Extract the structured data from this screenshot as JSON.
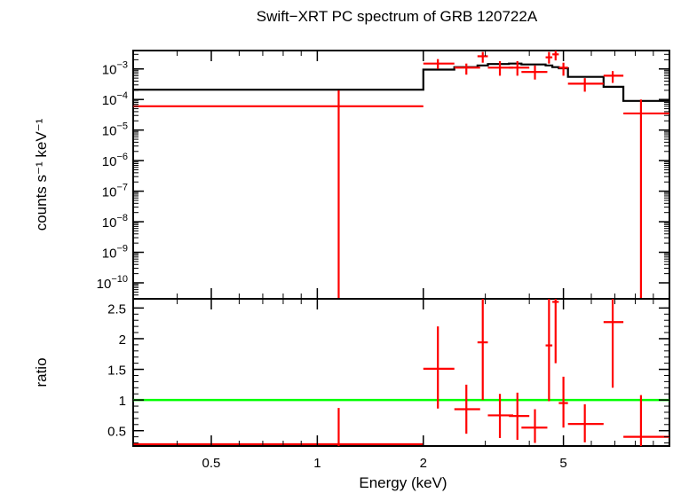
{
  "chart_data": [
    {
      "type": "scatter",
      "title": "Swift−XRT PC spectrum of GRB 120722A",
      "ylabel": "counts s⁻¹ keV⁻¹",
      "xlabel": "",
      "x_scale": "log",
      "y_scale": "log",
      "xlim": [
        0.3,
        10
      ],
      "ylim": [
        3e-11,
        0.004
      ],
      "y_ticks": [
        {
          "value": 0.001,
          "label": "10⁻³"
        },
        {
          "value": 0.0001,
          "label": "10⁻⁴"
        },
        {
          "value": 1e-05,
          "label": "10⁻⁵"
        },
        {
          "value": 1e-06,
          "label": "10⁻⁶"
        },
        {
          "value": 1e-07,
          "label": "10⁻⁷"
        },
        {
          "value": 1e-08,
          "label": "10⁻⁸"
        },
        {
          "value": 1e-09,
          "label": "10⁻⁹"
        },
        {
          "value": 1e-10,
          "label": "10⁻¹⁰"
        }
      ],
      "data_color": "#ff0000",
      "model_color": "#000000",
      "data_points": [
        {
          "x": 1.15,
          "xlo": 0.3,
          "xhi": 2.0,
          "y": 6e-05,
          "ylo": 3e-11,
          "yhi": 0.0002
        },
        {
          "x": 2.2,
          "xlo": 2.0,
          "xhi": 2.45,
          "y": 0.0015,
          "ylo": 0.001,
          "yhi": 0.0021
        },
        {
          "x": 2.65,
          "xlo": 2.45,
          "xhi": 2.9,
          "y": 0.0011,
          "ylo": 0.00065,
          "yhi": 0.0015
        },
        {
          "x": 2.95,
          "xlo": 2.85,
          "xhi": 3.05,
          "y": 0.0026,
          "ylo": 0.0016,
          "yhi": 0.0036
        },
        {
          "x": 3.3,
          "xlo": 3.05,
          "xhi": 3.6,
          "y": 0.0011,
          "ylo": 0.0006,
          "yhi": 0.0018
        },
        {
          "x": 3.7,
          "xlo": 3.5,
          "xhi": 4.0,
          "y": 0.0011,
          "ylo": 0.0006,
          "yhi": 0.0018
        },
        {
          "x": 4.15,
          "xlo": 3.8,
          "xhi": 4.5,
          "y": 0.0008,
          "ylo": 0.00045,
          "yhi": 0.0013
        },
        {
          "x": 4.55,
          "xlo": 4.45,
          "xhi": 4.65,
          "y": 0.0024,
          "ylo": 0.0015,
          "yhi": 0.0036
        },
        {
          "x": 4.75,
          "xlo": 4.65,
          "xhi": 4.85,
          "y": 0.003,
          "ylo": 0.0019,
          "yhi": 0.004
        },
        {
          "x": 5.0,
          "xlo": 4.85,
          "xhi": 5.15,
          "y": 0.0011,
          "ylo": 0.0006,
          "yhi": 0.0016
        },
        {
          "x": 5.75,
          "xlo": 5.15,
          "xhi": 6.5,
          "y": 0.00033,
          "ylo": 0.00018,
          "yhi": 0.0005
        },
        {
          "x": 6.9,
          "xlo": 6.5,
          "xhi": 7.4,
          "y": 0.0006,
          "ylo": 0.00035,
          "yhi": 0.00085
        },
        {
          "x": 8.3,
          "xlo": 7.4,
          "xhi": 10.0,
          "y": 3.5e-05,
          "ylo": 3e-11,
          "yhi": 0.0001
        }
      ],
      "model_steps": [
        {
          "xlo": 0.3,
          "xhi": 2.0,
          "y": 0.00021
        },
        {
          "xlo": 2.0,
          "xhi": 2.45,
          "y": 0.00095
        },
        {
          "xlo": 2.45,
          "xhi": 2.85,
          "y": 0.00115
        },
        {
          "xlo": 2.85,
          "xhi": 3.05,
          "y": 0.0013
        },
        {
          "xlo": 3.05,
          "xhi": 3.5,
          "y": 0.00145
        },
        {
          "xlo": 3.5,
          "xhi": 3.8,
          "y": 0.0015
        },
        {
          "xlo": 3.8,
          "xhi": 4.45,
          "y": 0.0014
        },
        {
          "xlo": 4.45,
          "xhi": 4.65,
          "y": 0.0013
        },
        {
          "xlo": 4.65,
          "xhi": 4.85,
          "y": 0.00115
        },
        {
          "xlo": 4.85,
          "xhi": 5.15,
          "y": 0.00105
        },
        {
          "xlo": 5.15,
          "xhi": 6.5,
          "y": 0.00055
        },
        {
          "xlo": 6.5,
          "xhi": 7.4,
          "y": 0.00026
        },
        {
          "xlo": 7.4,
          "xhi": 10.0,
          "y": 9e-05
        }
      ]
    },
    {
      "type": "scatter",
      "title": "",
      "ylabel": "ratio",
      "xlabel": "Energy (keV)",
      "x_scale": "log",
      "y_scale": "linear",
      "xlim": [
        0.3,
        10
      ],
      "ylim": [
        0.25,
        2.65
      ],
      "x_ticks": [
        {
          "value": 0.5,
          "label": "0.5"
        },
        {
          "value": 1,
          "label": "1"
        },
        {
          "value": 2,
          "label": "2"
        },
        {
          "value": 5,
          "label": "5"
        }
      ],
      "y_ticks": [
        {
          "value": 0.5,
          "label": "0.5"
        },
        {
          "value": 1,
          "label": "1"
        },
        {
          "value": 1.5,
          "label": "1.5"
        },
        {
          "value": 2,
          "label": "2"
        },
        {
          "value": 2.5,
          "label": "2.5"
        }
      ],
      "reference_line": 1,
      "reference_color": "#00ff00",
      "data_color": "#ff0000",
      "data_points": [
        {
          "x": 1.15,
          "xlo": 0.3,
          "xhi": 2.0,
          "y": 0.28,
          "ylo": 0.25,
          "yhi": 0.87
        },
        {
          "x": 2.2,
          "xlo": 2.0,
          "xhi": 2.45,
          "y": 1.51,
          "ylo": 0.86,
          "yhi": 2.2
        },
        {
          "x": 2.65,
          "xlo": 2.45,
          "xhi": 2.9,
          "y": 0.85,
          "ylo": 0.45,
          "yhi": 1.25
        },
        {
          "x": 2.95,
          "xlo": 2.85,
          "xhi": 3.05,
          "y": 1.94,
          "ylo": 1.0,
          "yhi": 2.65
        },
        {
          "x": 3.3,
          "xlo": 3.05,
          "xhi": 3.6,
          "y": 0.75,
          "ylo": 0.38,
          "yhi": 1.1
        },
        {
          "x": 3.7,
          "xlo": 3.5,
          "xhi": 4.0,
          "y": 0.74,
          "ylo": 0.35,
          "yhi": 1.12
        },
        {
          "x": 4.15,
          "xlo": 3.8,
          "xhi": 4.5,
          "y": 0.55,
          "ylo": 0.3,
          "yhi": 0.85
        },
        {
          "x": 4.55,
          "xlo": 4.45,
          "xhi": 4.65,
          "y": 1.89,
          "ylo": 0.98,
          "yhi": 2.65
        },
        {
          "x": 4.75,
          "xlo": 4.65,
          "xhi": 4.85,
          "y": 2.6,
          "ylo": 1.6,
          "yhi": 2.65
        },
        {
          "x": 5.0,
          "xlo": 4.85,
          "xhi": 5.15,
          "y": 0.95,
          "ylo": 0.55,
          "yhi": 1.38
        },
        {
          "x": 5.75,
          "xlo": 5.15,
          "xhi": 6.5,
          "y": 0.61,
          "ylo": 0.31,
          "yhi": 0.93
        },
        {
          "x": 6.9,
          "xlo": 6.5,
          "xhi": 7.4,
          "y": 2.27,
          "ylo": 1.2,
          "yhi": 2.65
        },
        {
          "x": 8.3,
          "xlo": 7.4,
          "xhi": 10.0,
          "y": 0.4,
          "ylo": 0.25,
          "yhi": 1.08
        }
      ]
    }
  ]
}
